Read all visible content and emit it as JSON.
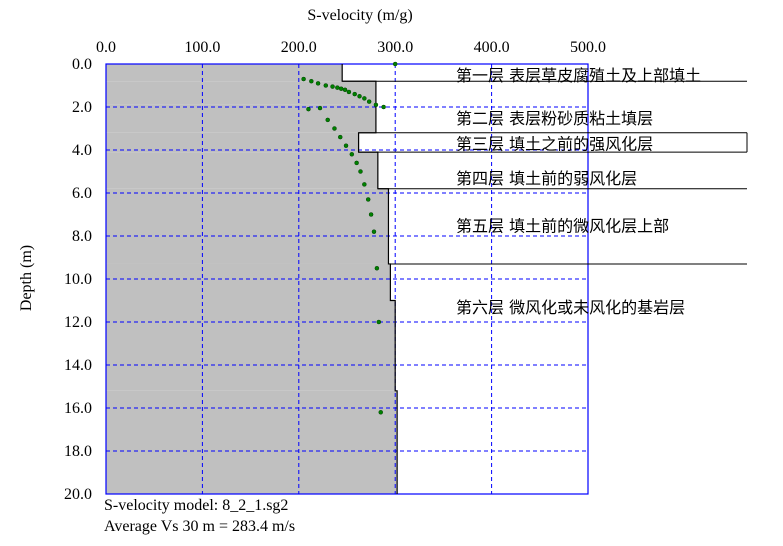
{
  "chart_data": {
    "type": "scatter",
    "title": "",
    "xlabel": "S-velocity (m/g)",
    "ylabel": "Depth (m)",
    "xlim": [
      0,
      500
    ],
    "ylim": [
      0,
      20
    ],
    "y_inverted": true,
    "grid": true,
    "x_ticks": [
      "0.0",
      "100.0",
      "200.0",
      "300.0",
      "400.0",
      "500.0"
    ],
    "y_ticks": [
      "0.0",
      "2.0",
      "4.0",
      "6.0",
      "8.0",
      "10.0",
      "12.0",
      "14.0",
      "16.0",
      "18.0",
      "20.0"
    ],
    "colors": {
      "plot_border": "#0000ff",
      "grid": "#0000ff",
      "fill": "#c0c0c0",
      "profile_line": "#000000",
      "points": "#008000"
    },
    "velocity_profile": [
      {
        "top": 0.0,
        "bottom": 0.8,
        "vs": 245
      },
      {
        "top": 0.8,
        "bottom": 1.9,
        "vs": 280
      },
      {
        "top": 1.9,
        "bottom": 3.2,
        "vs": 280
      },
      {
        "top": 3.2,
        "bottom": 4.1,
        "vs": 262
      },
      {
        "top": 4.1,
        "bottom": 5.8,
        "vs": 282
      },
      {
        "top": 5.8,
        "bottom": 9.3,
        "vs": 293
      },
      {
        "top": 9.3,
        "bottom": 11.0,
        "vs": 295
      },
      {
        "top": 11.0,
        "bottom": 15.2,
        "vs": 300
      },
      {
        "top": 15.2,
        "bottom": 20.0,
        "vs": 302
      }
    ],
    "points": [
      {
        "x": 300,
        "y": 0.0
      },
      {
        "x": 205,
        "y": 0.7
      },
      {
        "x": 213,
        "y": 0.8
      },
      {
        "x": 220,
        "y": 0.9
      },
      {
        "x": 228,
        "y": 1.0
      },
      {
        "x": 235,
        "y": 1.05
      },
      {
        "x": 240,
        "y": 1.1
      },
      {
        "x": 244,
        "y": 1.15
      },
      {
        "x": 248,
        "y": 1.2
      },
      {
        "x": 252,
        "y": 1.3
      },
      {
        "x": 258,
        "y": 1.4
      },
      {
        "x": 263,
        "y": 1.5
      },
      {
        "x": 268,
        "y": 1.6
      },
      {
        "x": 273,
        "y": 1.75
      },
      {
        "x": 280,
        "y": 1.9
      },
      {
        "x": 288,
        "y": 2.0
      },
      {
        "x": 210,
        "y": 2.1
      },
      {
        "x": 222,
        "y": 2.05
      },
      {
        "x": 230,
        "y": 2.6
      },
      {
        "x": 237,
        "y": 3.0
      },
      {
        "x": 243,
        "y": 3.4
      },
      {
        "x": 249,
        "y": 3.8
      },
      {
        "x": 255,
        "y": 4.2
      },
      {
        "x": 260,
        "y": 4.6
      },
      {
        "x": 264,
        "y": 5.0
      },
      {
        "x": 268,
        "y": 5.6
      },
      {
        "x": 272,
        "y": 6.3
      },
      {
        "x": 275,
        "y": 7.0
      },
      {
        "x": 278,
        "y": 7.8
      },
      {
        "x": 281,
        "y": 9.5
      },
      {
        "x": 283,
        "y": 12.0
      },
      {
        "x": 285,
        "y": 16.2
      }
    ],
    "layer_annotations": [
      {
        "label": "第一层 表层草皮腐殖土及上部填土",
        "depth": 0.5
      },
      {
        "label": "第二层 表层粉砂质粘土填层",
        "depth": 2.5
      },
      {
        "label": "第三层 填土之前的强风化层",
        "depth": 3.7
      },
      {
        "label": "第四层 填土前的弱风化层",
        "depth": 5.3
      },
      {
        "label": "第五层 填土前的微风化层上部",
        "depth": 7.5
      },
      {
        "label": "第六层 微风化或未风化的基岩层",
        "depth": 11.3
      }
    ],
    "layer_lines": [
      {
        "depth": 0.8,
        "left_vs": 245
      },
      {
        "depth": 3.2,
        "left_vs": 262
      },
      {
        "depth": 4.1,
        "left_vs": 262
      },
      {
        "depth": 5.8,
        "left_vs": 282
      },
      {
        "depth": 9.3,
        "left_vs": 293
      }
    ]
  },
  "footer": {
    "line1": "S-velocity model: 8_2_1.sg2",
    "line2": "Average Vs 30 m = 283.4 m/s"
  }
}
